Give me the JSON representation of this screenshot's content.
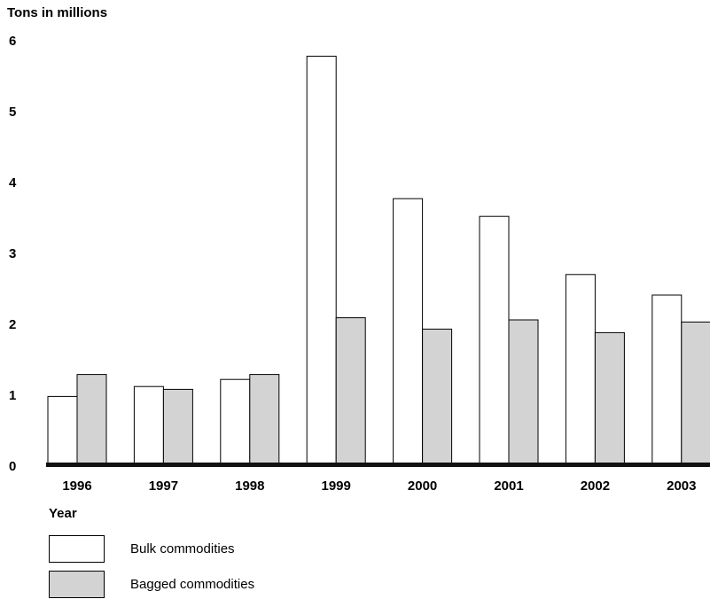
{
  "chart_data": {
    "type": "bar",
    "y_label": "Tons in millions",
    "x_label": "Year",
    "categories": [
      "1996",
      "1997",
      "1998",
      "1999",
      "2000",
      "2001",
      "2002",
      "2003"
    ],
    "series": [
      {
        "name": "Bulk commodities",
        "color": "#ffffff",
        "values": [
          0.97,
          1.11,
          1.21,
          5.77,
          3.76,
          3.51,
          2.69,
          2.4
        ]
      },
      {
        "name": "Bagged commodities",
        "color": "#d3d3d3",
        "values": [
          1.28,
          1.07,
          1.28,
          2.08,
          1.92,
          2.05,
          1.87,
          2.02
        ]
      }
    ],
    "ylim": [
      0,
      6
    ],
    "yticks": [
      0,
      1,
      2,
      3,
      4,
      5,
      6
    ],
    "grid": false
  }
}
